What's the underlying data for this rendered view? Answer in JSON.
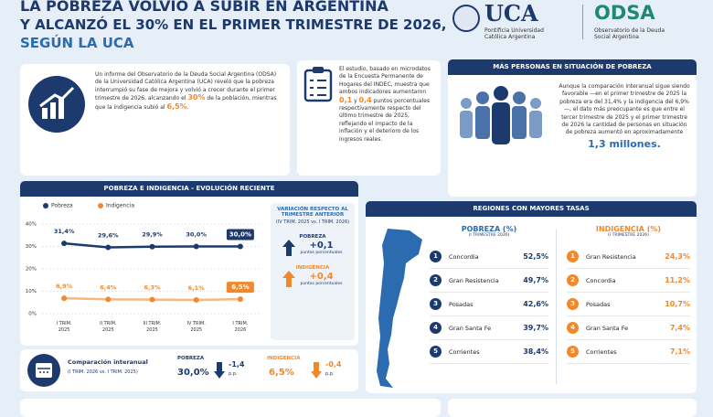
{
  "header": {
    "title_lines": [
      "LA POBREZA VOLVIÓ A SUBIR EN ARGENTINA",
      "Y ALCANZÓ EL 30% EN EL PRIMER TRIMESTRE DE 2026,",
      "SEGÚN LA UCA"
    ]
  },
  "logos": {
    "uca": "UCA",
    "uca_sub": [
      "Pontificia Universidad",
      "Católica Argentina"
    ],
    "odsa": "ODSA",
    "odsa_sub": [
      "Observatorio de la Deuda",
      "Social Argentina"
    ]
  },
  "intro": {
    "before": "Un informe del Observatorio de la Deuda Social Argentina (ODSA) de la Universidad Católica Argentina (UCA) reveló que la pobreza interrumpió su fase de mejora y volvió a crecer durante el primer trimestre de 2026, alcanzando el ",
    "hl1": "30%",
    "middle": " de la población, mientras que la indigencia subió al ",
    "hl2": "6,5%",
    "after": "."
  },
  "study": {
    "before": "El estudio, basado en microdatos de la Encuesta Permanente de Hogares del INDEC, muestra que ambos indicadores aumentaron ",
    "hl1": "0,1",
    "middle": " y ",
    "hl2": "0,4",
    "after": " puntos porcentuales respectivamente respecto del último trimestre de 2025, reflejando el impacto de la inflación y el deterioro de los ingresos reales."
  },
  "more_people": {
    "title": "MÁS PERSONAS EN SITUACIÓN DE POBREZA",
    "text": "Aunque la comparación interanual sigue siendo favorable —en el primer trimestre de 2025 la pobreza era del 31,4% y la indigencia del 6,9%—, el dato más preocupante es que entre el tercer trimestre de 2025 y el primer trimestre de 2026 la cantidad de personas en situación de pobreza aumentó en aproximadamente",
    "highlight": "1,3 millones."
  },
  "chart_data": {
    "type": "line",
    "title": "POBREZA E INDIGENCIA - EVOLUCIÓN RECIENTE",
    "categories": [
      "I TRIM. 2025",
      "II TRIM. 2025",
      "III TRIM. 2025",
      "IV TRIM. 2025",
      "I TRIM. 2026"
    ],
    "series": [
      {
        "name": "Pobreza",
        "color": "#1d3a6e",
        "values": [
          31.4,
          29.6,
          29.9,
          30.0,
          30.0
        ],
        "value_labels": [
          "31,4%",
          "29,6%",
          "29,9%",
          "30,0%",
          "30,0%"
        ]
      },
      {
        "name": "Indigencia",
        "color": "#f0892b",
        "values": [
          6.9,
          6.4,
          6.3,
          6.1,
          6.5
        ],
        "value_labels": [
          "6,9%",
          "6,4%",
          "6,3%",
          "6,1%",
          "6,5%"
        ]
      }
    ],
    "ylim": [
      0,
      40
    ],
    "yticks": [
      {
        "value": 0,
        "label": "0%"
      },
      {
        "value": 10,
        "label": "10%"
      },
      {
        "value": 20,
        "label": "20%"
      },
      {
        "value": 30,
        "label": "30%"
      },
      {
        "value": 40,
        "label": "40%"
      }
    ],
    "grid": true,
    "legend": "top-left"
  },
  "variation": {
    "title": "VARIACIÓN RESPECTO AL TRIMESTRE ANTERIOR",
    "subtitle": "(IV TRIM. 2025 vs. I TRIM. 2026)",
    "pobreza_label": "POBREZA",
    "pobreza_value": "+0,1",
    "pobreza_unit": "puntos porcentuales",
    "indigencia_label": "INDIGENCIA",
    "indigencia_value": "+0,4",
    "indigencia_unit": "puntos porcentuales"
  },
  "interannual": {
    "title": "Comparación interanual",
    "subtitle": "(I TRIM. 2026 vs. I TRIM. 2025)",
    "pobreza_label": "POBREZA",
    "pobreza_value": "30,0%",
    "pobreza_change": "-1,4",
    "pobreza_unit": "p.p.",
    "indigencia_label": "INDIGENCIA",
    "indigencia_value": "6,5%",
    "indigencia_change": "-0,4",
    "indigencia_unit": "p.p."
  },
  "regions": {
    "title": "REGIONES CON MAYORES TASAS",
    "pobreza": {
      "title": "POBREZA (%)",
      "subtitle": "(I TRIMESTRE 2026)",
      "items": [
        {
          "rank": 1,
          "name": "Concordia",
          "value": "52,5%"
        },
        {
          "rank": 2,
          "name": "Gran Resistencia",
          "value": "49,7%"
        },
        {
          "rank": 3,
          "name": "Posadas",
          "value": "42,6%"
        },
        {
          "rank": 4,
          "name": "Gran Santa Fe",
          "value": "39,7%"
        },
        {
          "rank": 5,
          "name": "Corrientes",
          "value": "38,4%"
        }
      ]
    },
    "indigencia": {
      "title": "INDIGENCIA (%)",
      "subtitle": "(I TRIMESTRE 2026)",
      "items": [
        {
          "rank": 1,
          "name": "Gran Resistencia",
          "value": "24,3%"
        },
        {
          "rank": 2,
          "name": "Concordia",
          "value": "11,2%"
        },
        {
          "rank": 3,
          "name": "Posadas",
          "value": "10,7%"
        },
        {
          "rank": 4,
          "name": "Gran Santa Fe",
          "value": "7,4%"
        },
        {
          "rank": 5,
          "name": "Corrientes",
          "value": "7,1%"
        }
      ]
    }
  }
}
